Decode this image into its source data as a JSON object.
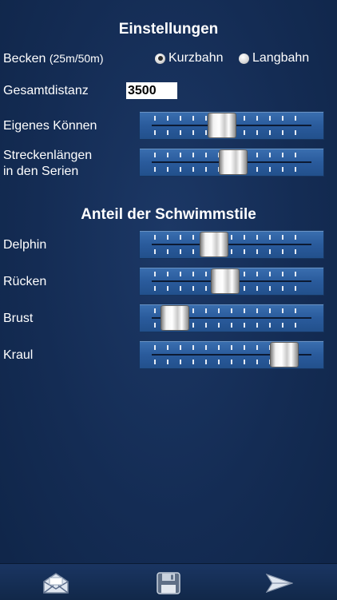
{
  "settings": {
    "title": "Einstellungen",
    "pool_label": "Becken",
    "pool_hint": "(25m/50m)",
    "pool_options": [
      "Kurzbahn",
      "Langbahn"
    ],
    "pool_selected": "Kurzbahn",
    "distance_label": "Gesamtdistanz",
    "distance_value": "3500",
    "skill_label": "Eigenes Können",
    "lengths_label_line1": "Streckenlängen",
    "lengths_label_line2": "in den Serien",
    "skill_level": 0.43,
    "lengths_level": 0.51
  },
  "styles": {
    "title": "Anteil der Schwimmstile",
    "items": [
      {
        "label": "Delphin",
        "level": 0.37
      },
      {
        "label": "Rücken",
        "level": 0.45
      },
      {
        "label": "Brust",
        "level": 0.08
      },
      {
        "label": "Kraul",
        "level": 0.89
      }
    ]
  },
  "bottom_icons": [
    "mail-icon",
    "save-icon",
    "send-icon"
  ],
  "colors": {
    "background": "#142c54",
    "slider": "#2a5b9c"
  }
}
